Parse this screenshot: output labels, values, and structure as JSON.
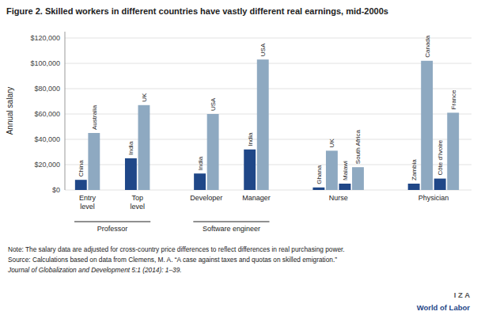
{
  "chart_data": {
    "type": "bar",
    "title": "Figure 2. Skilled workers in different countries have vastly different real earnings, mid-2000s",
    "ylabel": "Annual salary",
    "notes": [
      "Note: The salary data are adjusted for cross-country price differences to reflect differences in real purchasing power.",
      "Source: Calculations based on data from Clemens, M. A. “A case against taxes and quotas on skilled emigration.”",
      "Journal of Globalization and Development 5:1 (2014): 1–39."
    ],
    "brand": [
      "I  Z  A",
      "World of Labor"
    ],
    "sections": [
      {
        "label": "Professor",
        "groups": [
          {
            "label": "Entry\nlevel",
            "categories": [
              "China",
              "Australia"
            ],
            "values": [
              8000,
              45000
            ],
            "colors": [
              "#1f4788",
              "#8ea9c1"
            ]
          },
          {
            "label": "Top\nlevel",
            "categories": [
              "India",
              "UK"
            ],
            "values": [
              25000,
              67000
            ],
            "colors": [
              "#1f4788",
              "#8ea9c1"
            ]
          }
        ]
      },
      {
        "label": "Software engineer",
        "groups": [
          {
            "label": "Developer",
            "categories": [
              "India",
              "USA"
            ],
            "values": [
              13000,
              60000
            ],
            "colors": [
              "#1f4788",
              "#8ea9c1"
            ]
          },
          {
            "label": "Manager",
            "categories": [
              "India",
              "USA"
            ],
            "values": [
              32000,
              103000
            ],
            "colors": [
              "#1f4788",
              "#8ea9c1"
            ]
          }
        ]
      },
      {
        "label": null,
        "groups": [
          {
            "label": "Nurse",
            "categories": [
              "Ghana",
              "UK",
              "Malawi",
              "South Africa"
            ],
            "values": [
              2000,
              31000,
              5000,
              18000
            ],
            "colors": [
              "#1f4788",
              "#8ea9c1",
              "#1f4788",
              "#8ea9c1"
            ]
          }
        ]
      },
      {
        "label": null,
        "groups": [
          {
            "label": "Physician",
            "categories": [
              "Zambia",
              "Canada",
              "Côte d’Ivoire",
              "France"
            ],
            "values": [
              5000,
              102000,
              9000,
              61000
            ],
            "colors": [
              "#1f4788",
              "#8ea9c1",
              "#1f4788",
              "#8ea9c1"
            ]
          }
        ]
      }
    ],
    "ylim": [
      0,
      125000
    ],
    "yticks": [
      {
        "value": 0,
        "label": "$0"
      },
      {
        "value": 20000,
        "label": "$20,000"
      },
      {
        "value": 40000,
        "label": "$40,000"
      },
      {
        "value": 60000,
        "label": "$60,000"
      },
      {
        "value": 80000,
        "label": "$80,000"
      },
      {
        "value": 100000,
        "label": "$100,000"
      },
      {
        "value": 120000,
        "label": "$120,000"
      }
    ],
    "grid": true
  }
}
